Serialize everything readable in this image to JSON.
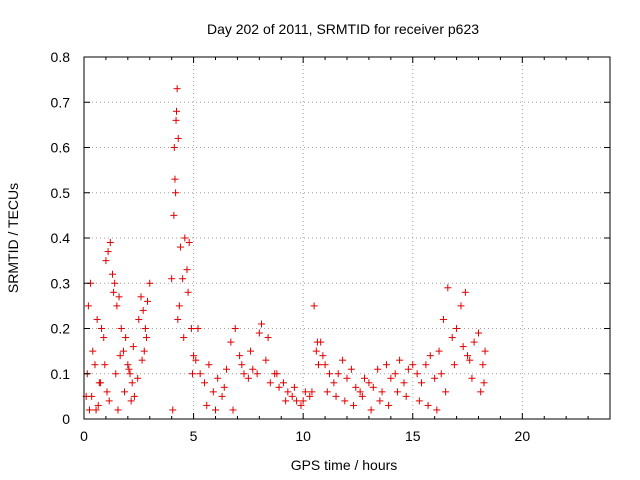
{
  "chart_data": {
    "type": "scatter",
    "title": "Day 202 of 2011, SRMTID for receiver p623",
    "xlabel": "GPS time / hours",
    "ylabel": "SRMTID / TECUs",
    "xlim": [
      0,
      24
    ],
    "ylim": [
      0,
      0.8
    ],
    "xticks": [
      0,
      5,
      10,
      15,
      20
    ],
    "yticks": [
      0,
      0.1,
      0.2,
      0.3,
      0.4,
      0.5,
      0.6,
      0.7,
      0.8
    ],
    "xtick_labels": [
      "0",
      "5",
      "10",
      "15",
      "20"
    ],
    "ytick_labels": [
      "0",
      "0.1",
      "0.2",
      "0.3",
      "0.4",
      "0.5",
      "0.6",
      "0.7",
      "0.8"
    ],
    "grid": true,
    "marker": "+",
    "color": "#e00000",
    "series": [
      {
        "name": "SRMTID",
        "x": [
          0.1,
          0.2,
          0.3,
          0.4,
          0.5,
          0.6,
          0.7,
          0.8,
          0.9,
          1.0,
          1.1,
          1.2,
          1.3,
          1.35,
          1.4,
          1.5,
          1.6,
          1.7,
          1.8,
          1.9,
          2.0,
          2.1,
          2.2,
          2.3,
          2.5,
          2.6,
          2.7,
          2.8,
          2.9,
          3.0,
          0.15,
          0.35,
          0.55,
          0.75,
          0.95,
          1.15,
          1.45,
          1.65,
          1.85,
          2.05,
          2.25,
          2.45,
          2.65,
          2.85,
          0.25,
          0.65,
          1.05,
          1.55,
          2.15,
          2.75,
          4.0,
          4.1,
          4.15,
          4.2,
          4.25,
          4.3,
          4.4,
          4.5,
          4.6,
          4.7,
          4.8,
          4.9,
          5.0,
          4.05,
          4.22,
          4.35,
          4.55,
          4.75,
          4.95,
          4.12,
          4.18,
          4.28,
          5.1,
          5.3,
          5.5,
          5.7,
          5.9,
          6.1,
          6.3,
          6.5,
          6.7,
          6.9,
          7.1,
          7.3,
          7.5,
          7.7,
          7.9,
          8.1,
          8.3,
          8.5,
          8.7,
          8.9,
          9.1,
          9.3,
          9.5,
          9.7,
          9.9,
          10.1,
          10.3,
          5.2,
          5.6,
          6.0,
          6.4,
          6.8,
          7.2,
          7.6,
          8.0,
          8.4,
          8.8,
          9.2,
          9.6,
          10.0,
          10.4,
          10.5,
          10.6,
          10.7,
          10.8,
          10.9,
          11.0,
          11.2,
          11.4,
          11.6,
          11.8,
          12.0,
          12.2,
          12.4,
          12.6,
          12.8,
          13.0,
          13.2,
          13.4,
          13.6,
          13.8,
          14.0,
          14.2,
          14.4,
          14.6,
          14.8,
          15.0,
          10.65,
          11.1,
          11.5,
          11.9,
          12.3,
          12.7,
          13.1,
          13.5,
          13.9,
          14.3,
          14.7,
          15.2,
          15.4,
          15.6,
          15.8,
          16.0,
          16.2,
          16.4,
          16.6,
          16.8,
          17.0,
          17.2,
          17.4,
          17.6,
          17.8,
          18.0,
          18.2,
          18.3,
          15.3,
          15.7,
          16.1,
          16.5,
          16.9,
          17.3,
          17.7,
          18.1,
          16.3,
          17.5,
          18.25
        ],
        "y": [
          0.05,
          0.25,
          0.3,
          0.15,
          0.12,
          0.22,
          0.08,
          0.2,
          0.18,
          0.35,
          0.37,
          0.39,
          0.32,
          0.28,
          0.3,
          0.25,
          0.27,
          0.2,
          0.15,
          0.18,
          0.12,
          0.1,
          0.08,
          0.05,
          0.22,
          0.27,
          0.24,
          0.2,
          0.26,
          0.3,
          0.1,
          0.05,
          0.02,
          0.08,
          0.12,
          0.04,
          0.1,
          0.14,
          0.06,
          0.11,
          0.16,
          0.09,
          0.13,
          0.18,
          0.02,
          0.03,
          0.06,
          0.02,
          0.04,
          0.15,
          0.31,
          0.45,
          0.53,
          0.66,
          0.73,
          0.62,
          0.38,
          0.31,
          0.4,
          0.33,
          0.39,
          0.2,
          0.14,
          0.02,
          0.68,
          0.25,
          0.18,
          0.28,
          0.1,
          0.6,
          0.5,
          0.22,
          0.13,
          0.1,
          0.08,
          0.12,
          0.06,
          0.09,
          0.05,
          0.11,
          0.17,
          0.2,
          0.14,
          0.1,
          0.09,
          0.11,
          0.1,
          0.21,
          0.13,
          0.08,
          0.1,
          0.07,
          0.08,
          0.06,
          0.05,
          0.04,
          0.03,
          0.06,
          0.05,
          0.2,
          0.03,
          0.02,
          0.07,
          0.02,
          0.12,
          0.15,
          0.19,
          0.18,
          0.1,
          0.04,
          0.07,
          0.04,
          0.06,
          0.25,
          0.15,
          0.12,
          0.17,
          0.14,
          0.12,
          0.1,
          0.08,
          0.1,
          0.13,
          0.09,
          0.11,
          0.07,
          0.06,
          0.09,
          0.08,
          0.07,
          0.11,
          0.06,
          0.12,
          0.09,
          0.1,
          0.13,
          0.08,
          0.11,
          0.12,
          0.17,
          0.06,
          0.05,
          0.04,
          0.03,
          0.05,
          0.02,
          0.04,
          0.03,
          0.06,
          0.05,
          0.1,
          0.08,
          0.12,
          0.14,
          0.09,
          0.15,
          0.22,
          0.29,
          0.18,
          0.2,
          0.25,
          0.28,
          0.13,
          0.17,
          0.19,
          0.12,
          0.15,
          0.04,
          0.03,
          0.02,
          0.06,
          0.12,
          0.16,
          0.09,
          0.06,
          0.1,
          0.14,
          0.08
        ]
      }
    ]
  }
}
